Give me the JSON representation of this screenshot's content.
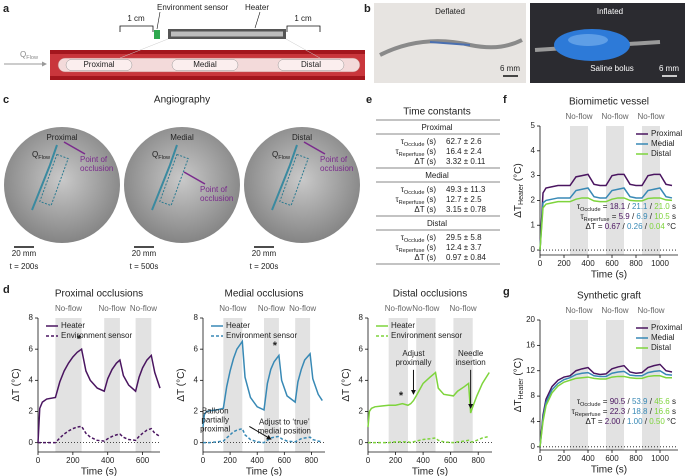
{
  "panel_labels": [
    "a",
    "b",
    "c",
    "d",
    "e",
    "f",
    "g"
  ],
  "diagram": {
    "flow": {
      "main": "Q",
      "sub": "Flow"
    },
    "spacing": [
      "1 cm",
      "1 cm"
    ],
    "sensor": "Environment sensor",
    "heater": "Heater",
    "segments": [
      "Proximal",
      "Medial",
      "Distal"
    ]
  },
  "photos": {
    "deflated": "Deflated",
    "inflated": "Inflated",
    "scale": [
      "6 mm",
      "6 mm"
    ],
    "bolus": "Saline bolus"
  },
  "angiography": {
    "title": "Angiography",
    "images": [
      {
        "name": "Proximal",
        "flow": {
          "main": "Q",
          "sub": "Flow"
        },
        "occlusion": [
          "Point of",
          "occlusion"
        ],
        "scale": "20 mm",
        "time": "t = 200s"
      },
      {
        "name": "Medial",
        "flow": {
          "main": "Q",
          "sub": "Flow"
        },
        "occlusion": [
          "Point of",
          "occlusion"
        ],
        "scale": "20 mm",
        "time": "t = 500s"
      },
      {
        "name": "Distal",
        "flow": {
          "main": "Q",
          "sub": "Flow"
        },
        "occlusion": [
          "Point of",
          "occlusion"
        ],
        "scale": "20 mm",
        "time": "t = 200s"
      }
    ]
  },
  "table": {
    "title": "Time constants",
    "sections": [
      {
        "name": "Proximal",
        "rows": [
          {
            "label": {
              "symbol": "τ",
              "sub": "Occlude",
              "unit": " (s)"
            },
            "value": "62.7 ± 2.6"
          },
          {
            "label": {
              "symbol": "τ",
              "sub": "Reperfuse",
              "unit": " (s)"
            },
            "value": "16.4 ± 2.4"
          },
          {
            "label": {
              "symbol": "ΔT",
              "unit": " (s)"
            },
            "value": "3.32 ± 0.11"
          }
        ]
      },
      {
        "name": "Medial",
        "rows": [
          {
            "label": {
              "symbol": "τ",
              "sub": "Occlude",
              "unit": " (s)"
            },
            "value": "49.3 ± 11.3"
          },
          {
            "label": {
              "symbol": "τ",
              "sub": "Reperfuse",
              "unit": " (s)"
            },
            "value": "12.7 ± 2.5"
          },
          {
            "label": {
              "symbol": "ΔT",
              "unit": " (s)"
            },
            "value": "3.15 ± 0.78"
          }
        ]
      },
      {
        "name": "Distal",
        "rows": [
          {
            "label": {
              "symbol": "τ",
              "sub": "Occlude",
              "unit": " (s)"
            },
            "value": "29.5 ± 5.8"
          },
          {
            "label": {
              "symbol": "τ",
              "sub": "Reperfuse",
              "unit": " (s)"
            },
            "value": "12.4 ± 3.7"
          },
          {
            "label": {
              "symbol": "ΔT",
              "unit": " (s)"
            },
            "value": "0.97 ± 0.84"
          }
        ]
      }
    ]
  },
  "chart_data": [
    {
      "type": "line",
      "title": "Biomimetic vessel",
      "x": [
        0,
        25,
        50,
        100,
        150,
        200,
        250,
        300,
        350,
        400,
        450,
        500,
        550,
        600,
        650,
        700,
        750,
        800,
        850,
        900,
        950,
        1000,
        1050,
        1100
      ],
      "xlim": [
        0,
        1150
      ],
      "xticks": [
        0,
        200,
        400,
        600,
        800,
        1000
      ],
      "ylim": [
        -0.2,
        5
      ],
      "yticks": [
        0,
        1,
        2,
        3,
        4,
        5
      ],
      "xlabel": "Time (s)",
      "ylabel": {
        "main": "ΔT",
        "sub": "Heater",
        "unit": " (°C)"
      },
      "shaded": {
        "label": "No-flow",
        "ranges": [
          [
            250,
            400
          ],
          [
            550,
            700
          ],
          [
            850,
            1000
          ]
        ],
        "color": "#e2e2e2"
      },
      "zero_line": true,
      "legend": "upper right",
      "series": [
        {
          "name": "Proximal",
          "color": "#4a1560",
          "values": [
            0,
            2.3,
            2.5,
            2.55,
            2.6,
            2.6,
            2.6,
            2.95,
            3.0,
            3.05,
            2.65,
            2.6,
            2.6,
            3.0,
            3.05,
            3.05,
            2.65,
            2.6,
            2.6,
            3.0,
            3.05,
            3.05,
            2.65,
            2.6
          ]
        },
        {
          "name": "Medial",
          "color": "#3889b5",
          "values": [
            0,
            1.9,
            2.0,
            2.05,
            2.1,
            2.1,
            2.1,
            2.4,
            2.45,
            2.5,
            2.15,
            2.1,
            2.1,
            2.4,
            2.45,
            2.5,
            2.15,
            2.1,
            2.1,
            2.4,
            2.45,
            2.5,
            2.15,
            2.1
          ]
        },
        {
          "name": "Distal",
          "color": "#7ed43c",
          "values": [
            0,
            1.7,
            1.85,
            1.9,
            1.95,
            1.95,
            1.95,
            2.05,
            2.1,
            2.1,
            1.98,
            1.95,
            1.95,
            2.05,
            2.1,
            2.1,
            2.0,
            1.98,
            1.98,
            2.08,
            2.1,
            2.1,
            2.02,
            2.0
          ]
        }
      ],
      "stats": {
        "separator": " / ",
        "rows": [
          {
            "symbol": "τ",
            "sub": "Occlude",
            "eq": " = ",
            "values": [
              "18.1",
              "21.1",
              "21.0"
            ],
            "unit": " s"
          },
          {
            "symbol": "τ",
            "sub": "Reperfuse",
            "eq": " = ",
            "values": [
              "5.9",
              "6.9",
              "10.5"
            ],
            "unit": " s"
          },
          {
            "symbol": "ΔT",
            "eq": " = ",
            "values": [
              "0.67",
              "0.26",
              "0.04"
            ],
            "unit": " °C"
          }
        ]
      }
    },
    {
      "type": "line",
      "title": "Synthetic graft",
      "x": [
        0,
        25,
        50,
        100,
        150,
        200,
        250,
        300,
        350,
        400,
        450,
        500,
        550,
        600,
        650,
        700,
        750,
        800,
        850,
        900,
        950,
        1000,
        1050,
        1100
      ],
      "xlim": [
        0,
        1150
      ],
      "xticks": [
        0,
        200,
        400,
        600,
        800,
        1000
      ],
      "ylim": [
        -0.5,
        20
      ],
      "yticks": [
        0,
        4,
        8,
        12,
        16,
        20
      ],
      "xlabel": "Time (s)",
      "ylabel": {
        "main": "ΔT",
        "sub": "Heater",
        "unit": " (°C)"
      },
      "shaded": {
        "label": "No-flow",
        "ranges": [
          [
            250,
            400
          ],
          [
            550,
            700
          ],
          [
            850,
            1000
          ]
        ],
        "color": "#e2e2e2"
      },
      "zero_line": true,
      "legend": "upper right",
      "series": [
        {
          "name": "Proximal",
          "color": "#4a1560",
          "values": [
            0,
            5,
            7.5,
            9.5,
            10.5,
            11,
            11.2,
            12,
            12.3,
            12.5,
            11.6,
            11.4,
            11.5,
            12.3,
            12.6,
            12.8,
            11.8,
            11.6,
            11.7,
            12.5,
            12.8,
            13,
            12,
            11.8
          ]
        },
        {
          "name": "Medial",
          "color": "#3889b5",
          "values": [
            0,
            4.5,
            7,
            9,
            10,
            10.6,
            10.9,
            11.4,
            11.6,
            11.7,
            11.2,
            11.1,
            11.1,
            11.6,
            11.8,
            11.9,
            11.3,
            11.2,
            11.2,
            11.7,
            11.9,
            12,
            11.4,
            11.3
          ]
        },
        {
          "name": "Distal",
          "color": "#7ed43c",
          "values": [
            0,
            4,
            6.5,
            8.5,
            9.6,
            10.2,
            10.5,
            10.8,
            10.9,
            11,
            10.8,
            10.7,
            10.7,
            11,
            11.1,
            11.1,
            10.9,
            10.8,
            10.8,
            11.1,
            11.2,
            11.2,
            10.9,
            10.9
          ]
        }
      ],
      "stats": {
        "separator": " / ",
        "rows": [
          {
            "symbol": "τ",
            "sub": "Occlude",
            "eq": " = ",
            "values": [
              "90.5",
              "53.9",
              "45.6"
            ],
            "unit": " s"
          },
          {
            "symbol": "τ",
            "sub": "Reperfuse",
            "eq": " = ",
            "values": [
              "22.3",
              "18.8",
              "16.6"
            ],
            "unit": " s"
          },
          {
            "symbol": "ΔT",
            "eq": " = ",
            "values": [
              "2.00",
              "1.00",
              "0.50"
            ],
            "unit": " °C"
          }
        ]
      }
    },
    {
      "type": "line",
      "title": "Proximal occlusions",
      "x": [
        0,
        10,
        25,
        50,
        100,
        125,
        150,
        175,
        200,
        225,
        250,
        275,
        300,
        340,
        380,
        400,
        425,
        450,
        470,
        490,
        520,
        560,
        580,
        600,
        625,
        650,
        670,
        700
      ],
      "xlim": [
        0,
        700
      ],
      "xticks": [
        0,
        200,
        400,
        600
      ],
      "ylim": [
        -0.6,
        8
      ],
      "yticks": [
        0,
        2,
        4,
        6,
        8
      ],
      "xlabel": "Time (s)",
      "ylabel": {
        "main": "ΔT",
        "unit": " (°C)"
      },
      "shaded": {
        "label": "No-flow",
        "ranges": [
          [
            100,
            250
          ],
          [
            380,
            470
          ],
          [
            560,
            650
          ]
        ],
        "color": "#e2e2e2"
      },
      "zero_line": true,
      "legend": "upper left",
      "series": [
        {
          "name": "Heater",
          "color": "#4a1560",
          "dash": false,
          "values": [
            0,
            2.2,
            2.6,
            2.8,
            2.9,
            3.9,
            4.6,
            5.1,
            5.5,
            5.8,
            6.0,
            4.6,
            4.0,
            3.5,
            3.3,
            4.1,
            4.7,
            5.1,
            5.3,
            4.3,
            3.7,
            3.3,
            4.2,
            4.8,
            5.3,
            5.6,
            4.5,
            3.5
          ]
        },
        {
          "name": "Environment sensor",
          "color": "#4a1560",
          "dash": true,
          "values": [
            0,
            0,
            0,
            0,
            0,
            0.3,
            0.55,
            0.75,
            0.9,
            1.0,
            1.05,
            0.6,
            0.35,
            0.15,
            0.1,
            0.25,
            0.4,
            0.5,
            0.55,
            0.35,
            0.2,
            0.15,
            0.4,
            0.6,
            0.8,
            0.9,
            0.6,
            0.4
          ]
        }
      ],
      "annotations": [
        {
          "lines": [
            "*"
          ]
        }
      ]
    },
    {
      "type": "line",
      "title": "Medial occlusions",
      "x": [
        0,
        10,
        25,
        50,
        100,
        150,
        175,
        200,
        225,
        250,
        290,
        310,
        350,
        400,
        450,
        475,
        500,
        525,
        560,
        580,
        620,
        680,
        700,
        725,
        750,
        790,
        810,
        850,
        880
      ],
      "xlim": [
        0,
        900
      ],
      "xticks": [
        0,
        200,
        400,
        600,
        800
      ],
      "ylim": [
        -0.6,
        8
      ],
      "yticks": [
        0,
        2,
        4,
        6,
        8
      ],
      "xlabel": "Time (s)",
      "ylabel": {
        "main": "ΔT",
        "unit": " (°C)"
      },
      "shaded": {
        "label": "No-flow",
        "ranges": [
          [
            150,
            290
          ],
          [
            450,
            560
          ],
          [
            680,
            790
          ]
        ],
        "color": "#e2e2e2"
      },
      "zero_line": true,
      "legend": "upper left",
      "series": [
        {
          "name": "Heater",
          "color": "#3889b5",
          "dash": false,
          "values": [
            1.0,
            1.8,
            2.0,
            2.05,
            2.1,
            2.2,
            3.6,
            4.6,
            5.4,
            6.0,
            6.5,
            4.2,
            2.9,
            2.3,
            2.1,
            3.8,
            4.7,
            5.2,
            5.6,
            4.0,
            3.0,
            2.6,
            3.9,
            4.7,
            5.3,
            5.7,
            4.1,
            3.1,
            2.7
          ]
        },
        {
          "name": "Environment sensor",
          "color": "#3889b5",
          "dash": true,
          "values": [
            0,
            0,
            0,
            0,
            0.05,
            0.1,
            0.3,
            0.5,
            0.7,
            0.8,
            0.9,
            0.5,
            0.2,
            0.05,
            0,
            0.15,
            0.3,
            0.35,
            0.4,
            0.25,
            0.1,
            0.05,
            0.15,
            0.25,
            0.3,
            0.35,
            0.2,
            0.1,
            0.05
          ]
        }
      ],
      "annotations": [
        {
          "lines": [
            "Balloon",
            "partially",
            "proximal"
          ]
        },
        {
          "lines": [
            "Adjust to ‘true’",
            "medial position"
          ]
        },
        {
          "lines": [
            "*"
          ]
        }
      ]
    },
    {
      "type": "line",
      "title": "Distal occlusions",
      "x": [
        0,
        10,
        25,
        50,
        100,
        150,
        200,
        250,
        290,
        310,
        330,
        350,
        375,
        400,
        450,
        490,
        510,
        550,
        620,
        650,
        700,
        730,
        745,
        760,
        790,
        830,
        880
      ],
      "xlim": [
        0,
        900
      ],
      "xticks": [
        0,
        200,
        400,
        600,
        800
      ],
      "ylim": [
        -0.6,
        8
      ],
      "yticks": [
        0,
        2,
        4,
        6,
        8
      ],
      "xlabel": "Time (s)",
      "ylabel": {
        "main": "ΔT",
        "unit": " (°C)"
      },
      "shaded": {
        "label": "No-flow",
        "ranges": [
          [
            150,
            290
          ],
          [
            350,
            490
          ],
          [
            620,
            760
          ]
        ],
        "color": "#e2e2e2"
      },
      "zero_line": true,
      "legend": "upper left",
      "series": [
        {
          "name": "Heater",
          "color": "#7ed43c",
          "dash": false,
          "values": [
            1.0,
            2.0,
            2.2,
            2.3,
            2.35,
            2.4,
            2.4,
            2.5,
            2.4,
            2.5,
            2.7,
            3.0,
            3.4,
            3.8,
            4.2,
            4.5,
            3.5,
            3.1,
            3.0,
            3.3,
            3.6,
            3.8,
            1.9,
            2.3,
            3.0,
            3.8,
            4.5
          ]
        },
        {
          "name": "Environment sensor",
          "color": "#7ed43c",
          "dash": true,
          "values": [
            0,
            0,
            0,
            0,
            0,
            0,
            0.05,
            0.05,
            0.05,
            0,
            0.05,
            0.1,
            0.15,
            0.2,
            0.25,
            0.3,
            0.15,
            0.05,
            0,
            0.05,
            0.1,
            0.15,
            0.05,
            0.05,
            0.15,
            0.3,
            0.4
          ]
        }
      ],
      "annotations": [
        {
          "lines": [
            "*"
          ]
        },
        {
          "lines": [
            "Adjust",
            "proximally"
          ]
        },
        {
          "lines": [
            "Needle",
            "insertion"
          ]
        }
      ]
    }
  ]
}
